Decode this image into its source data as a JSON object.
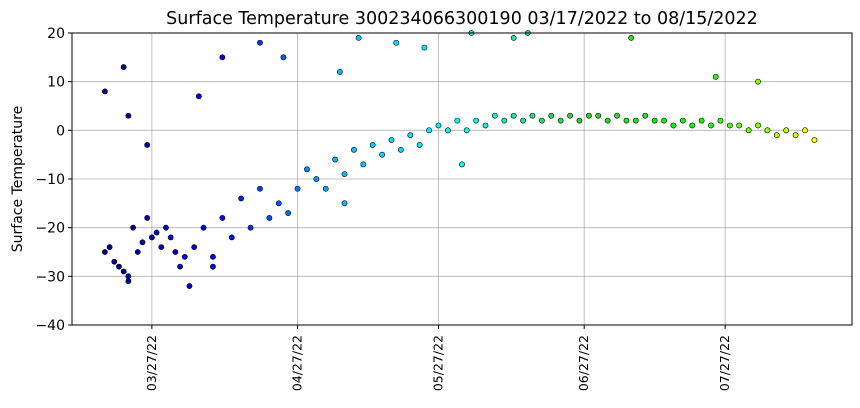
{
  "chart_data": {
    "type": "scatter",
    "title": "Surface Temperature 300234066300190  03/17/2022 to 08/15/2022",
    "xlabel": "",
    "ylabel": "Surface Temperature",
    "xlim": [
      "2022-03-10",
      "2022-08-23"
    ],
    "ylim": [
      -40,
      20
    ],
    "y_ticks": [
      -40,
      -30,
      -20,
      -10,
      0,
      10,
      20
    ],
    "x_ticks": [
      {
        "date": "2022-03-27",
        "label": "03/27/22"
      },
      {
        "date": "2022-04-27",
        "label": "04/27/22"
      },
      {
        "date": "2022-05-27",
        "label": "05/27/22"
      },
      {
        "date": "2022-06-27",
        "label": "06/27/22"
      },
      {
        "date": "2022-07-27",
        "label": "07/27/22"
      }
    ],
    "grid": true,
    "marker_edge_color": "#000000",
    "color_ramp": [
      "#00008b",
      "#0000ff",
      "#00bfff",
      "#00ffff",
      "#32cd32",
      "#00ff00",
      "#ffff00"
    ],
    "series": [
      {
        "values": [
          {
            "x": "2022-03-17",
            "y": -25
          },
          {
            "x": "2022-03-18",
            "y": -24
          },
          {
            "x": "2022-03-19",
            "y": -27
          },
          {
            "x": "2022-03-20",
            "y": -28
          },
          {
            "x": "2022-03-21",
            "y": -29
          },
          {
            "x": "2022-03-22",
            "y": -30
          },
          {
            "x": "2022-03-23",
            "y": -20
          },
          {
            "x": "2022-03-24",
            "y": -25
          },
          {
            "x": "2022-03-25",
            "y": -23
          },
          {
            "x": "2022-03-26",
            "y": -18
          },
          {
            "x": "2022-03-27",
            "y": -22
          },
          {
            "x": "2022-03-28",
            "y": -21
          },
          {
            "x": "2022-03-29",
            "y": -24
          },
          {
            "x": "2022-03-30",
            "y": -20
          },
          {
            "x": "2022-03-31",
            "y": -22
          },
          {
            "x": "2022-04-01",
            "y": -25
          },
          {
            "x": "2022-04-02",
            "y": -28
          },
          {
            "x": "2022-04-03",
            "y": -26
          },
          {
            "x": "2022-04-05",
            "y": -24
          },
          {
            "x": "2022-04-07",
            "y": -20
          },
          {
            "x": "2022-04-09",
            "y": -26
          },
          {
            "x": "2022-04-11",
            "y": -18
          },
          {
            "x": "2022-04-13",
            "y": -22
          },
          {
            "x": "2022-04-15",
            "y": -14
          },
          {
            "x": "2022-04-17",
            "y": -20
          },
          {
            "x": "2022-04-19",
            "y": -12
          },
          {
            "x": "2022-04-21",
            "y": -18
          },
          {
            "x": "2022-04-23",
            "y": -15
          },
          {
            "x": "2022-04-25",
            "y": -17
          },
          {
            "x": "2022-04-27",
            "y": -12
          },
          {
            "x": "2022-04-29",
            "y": -8
          },
          {
            "x": "2022-05-01",
            "y": -10
          },
          {
            "x": "2022-05-03",
            "y": -12
          },
          {
            "x": "2022-05-05",
            "y": -6
          },
          {
            "x": "2022-05-07",
            "y": -9
          },
          {
            "x": "2022-05-09",
            "y": -4
          },
          {
            "x": "2022-05-11",
            "y": -7
          },
          {
            "x": "2022-05-13",
            "y": -3
          },
          {
            "x": "2022-05-15",
            "y": -5
          },
          {
            "x": "2022-05-17",
            "y": -2
          },
          {
            "x": "2022-05-19",
            "y": -4
          },
          {
            "x": "2022-05-21",
            "y": -1
          },
          {
            "x": "2022-05-23",
            "y": -3
          },
          {
            "x": "2022-05-25",
            "y": 0
          },
          {
            "x": "2022-05-27",
            "y": 1
          },
          {
            "x": "2022-05-29",
            "y": 0
          },
          {
            "x": "2022-05-31",
            "y": 2
          },
          {
            "x": "2022-06-02",
            "y": 0
          },
          {
            "x": "2022-06-04",
            "y": 2
          },
          {
            "x": "2022-06-06",
            "y": 1
          },
          {
            "x": "2022-06-08",
            "y": 3
          },
          {
            "x": "2022-06-10",
            "y": 2
          },
          {
            "x": "2022-06-12",
            "y": 3
          },
          {
            "x": "2022-06-14",
            "y": 2
          },
          {
            "x": "2022-06-16",
            "y": 3
          },
          {
            "x": "2022-06-18",
            "y": 2
          },
          {
            "x": "2022-06-20",
            "y": 3
          },
          {
            "x": "2022-06-22",
            "y": 2
          },
          {
            "x": "2022-06-24",
            "y": 3
          },
          {
            "x": "2022-06-26",
            "y": 2
          },
          {
            "x": "2022-06-28",
            "y": 3
          },
          {
            "x": "2022-06-30",
            "y": 3
          },
          {
            "x": "2022-07-02",
            "y": 2
          },
          {
            "x": "2022-07-04",
            "y": 3
          },
          {
            "x": "2022-07-06",
            "y": 2
          },
          {
            "x": "2022-07-08",
            "y": 2
          },
          {
            "x": "2022-07-10",
            "y": 3
          },
          {
            "x": "2022-07-12",
            "y": 2
          },
          {
            "x": "2022-07-14",
            "y": 2
          },
          {
            "x": "2022-07-16",
            "y": 1
          },
          {
            "x": "2022-07-18",
            "y": 2
          },
          {
            "x": "2022-07-20",
            "y": 1
          },
          {
            "x": "2022-07-22",
            "y": 2
          },
          {
            "x": "2022-07-24",
            "y": 1
          },
          {
            "x": "2022-07-26",
            "y": 2
          },
          {
            "x": "2022-07-28",
            "y": 1
          },
          {
            "x": "2022-07-30",
            "y": 1
          },
          {
            "x": "2022-08-01",
            "y": 0
          },
          {
            "x": "2022-08-03",
            "y": 1
          },
          {
            "x": "2022-08-05",
            "y": 0
          },
          {
            "x": "2022-08-07",
            "y": -1
          },
          {
            "x": "2022-08-09",
            "y": 0
          },
          {
            "x": "2022-08-11",
            "y": -1
          },
          {
            "x": "2022-08-13",
            "y": 0
          },
          {
            "x": "2022-08-15",
            "y": -2
          },
          {
            "x": "2022-03-17",
            "y": 8
          },
          {
            "x": "2022-03-21",
            "y": 13
          },
          {
            "x": "2022-03-22",
            "y": 3
          },
          {
            "x": "2022-03-26",
            "y": -3
          },
          {
            "x": "2022-04-06",
            "y": 7
          },
          {
            "x": "2022-04-11",
            "y": 15
          },
          {
            "x": "2022-04-19",
            "y": 18
          },
          {
            "x": "2022-04-24",
            "y": 15
          },
          {
            "x": "2022-05-06",
            "y": 12
          },
          {
            "x": "2022-05-10",
            "y": 19
          },
          {
            "x": "2022-05-18",
            "y": 18
          },
          {
            "x": "2022-05-24",
            "y": 17
          },
          {
            "x": "2022-06-03",
            "y": 20
          },
          {
            "x": "2022-06-12",
            "y": 19
          },
          {
            "x": "2022-06-15",
            "y": 20
          },
          {
            "x": "2022-07-07",
            "y": 19
          },
          {
            "x": "2022-07-25",
            "y": 11
          },
          {
            "x": "2022-08-03",
            "y": 10
          },
          {
            "x": "2022-03-22",
            "y": -31
          },
          {
            "x": "2022-04-04",
            "y": -32
          },
          {
            "x": "2022-04-09",
            "y": -28
          },
          {
            "x": "2022-05-07",
            "y": -15
          },
          {
            "x": "2022-06-01",
            "y": -7
          }
        ]
      }
    ]
  }
}
